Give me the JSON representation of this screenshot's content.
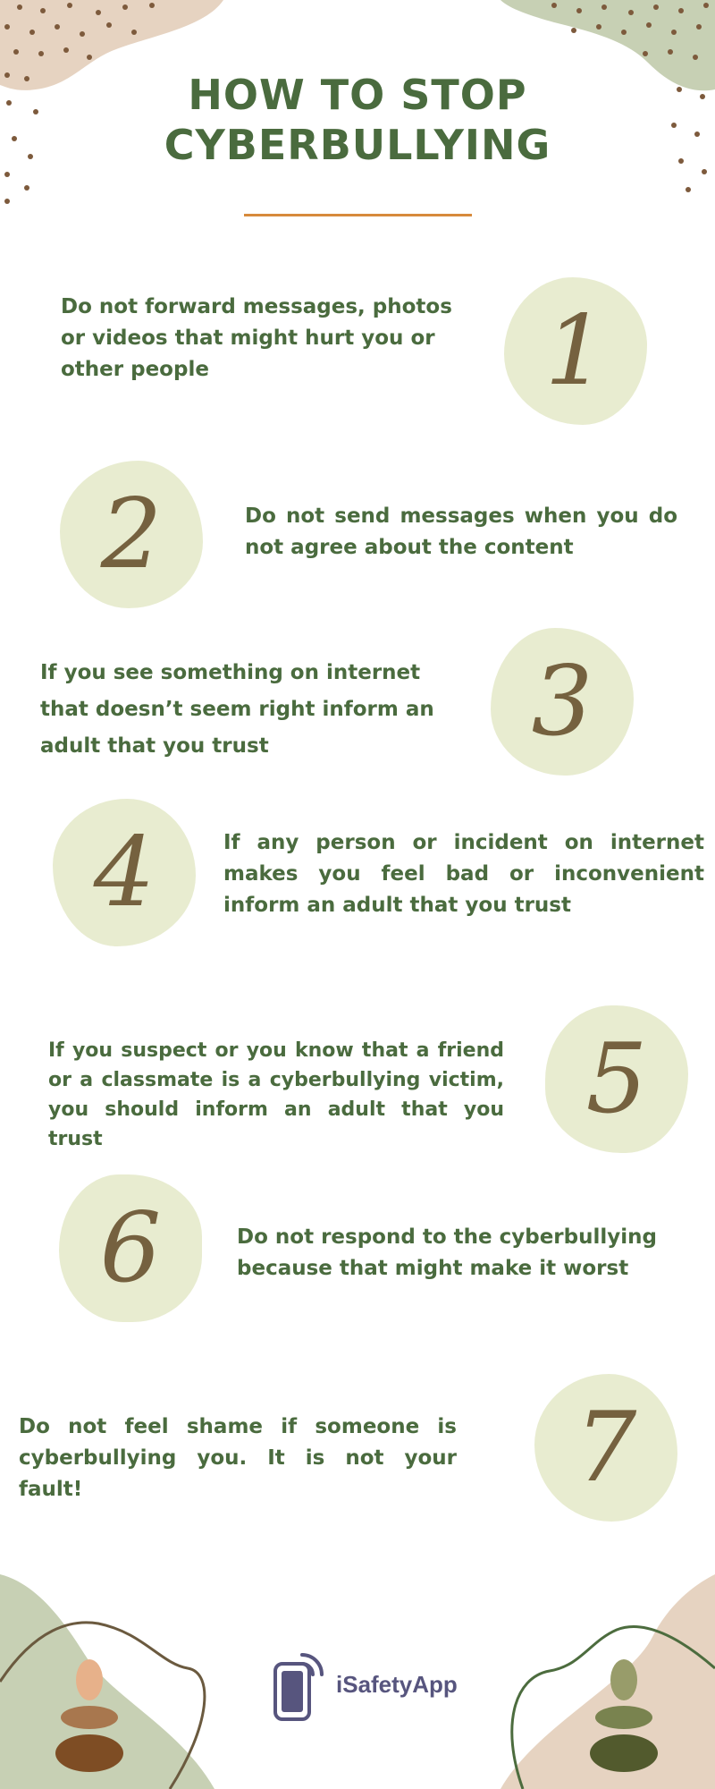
{
  "title": {
    "line1": "HOW TO STOP",
    "line2": "CYBERBULLYING"
  },
  "steps": [
    {
      "number": "1",
      "text": "Do not forward messages, photos or videos that might hurt you or other people"
    },
    {
      "number": "2",
      "text": "Do not send messages when you do not agree about the content"
    },
    {
      "number": "3",
      "text": "If you see something on internet that doesn’t seem right inform an adult that you trust"
    },
    {
      "number": "4",
      "text": "If any person or incident on internet makes you feel bad or inconvenient inform an adult that you trust"
    },
    {
      "number": "5",
      "text": "If you suspect or you know that a friend or a classmate is a cyberbullying victim, you should inform an adult that you trust"
    },
    {
      "number": "6",
      "text": "Do not respond to the cyberbullying because that might make it worst"
    },
    {
      "number": "7",
      "text": "Do not feel shame if someone is cyberbullying you. It is not your fault!"
    }
  ],
  "brand": {
    "name": "iSafetyApp",
    "icon": "phone-signal-icon",
    "color": "#57557e"
  },
  "colors": {
    "heading": "#4a6b3e",
    "accent_rule": "#d78a3c",
    "number_blob": "#e8ecd0",
    "number": "#75613f"
  }
}
